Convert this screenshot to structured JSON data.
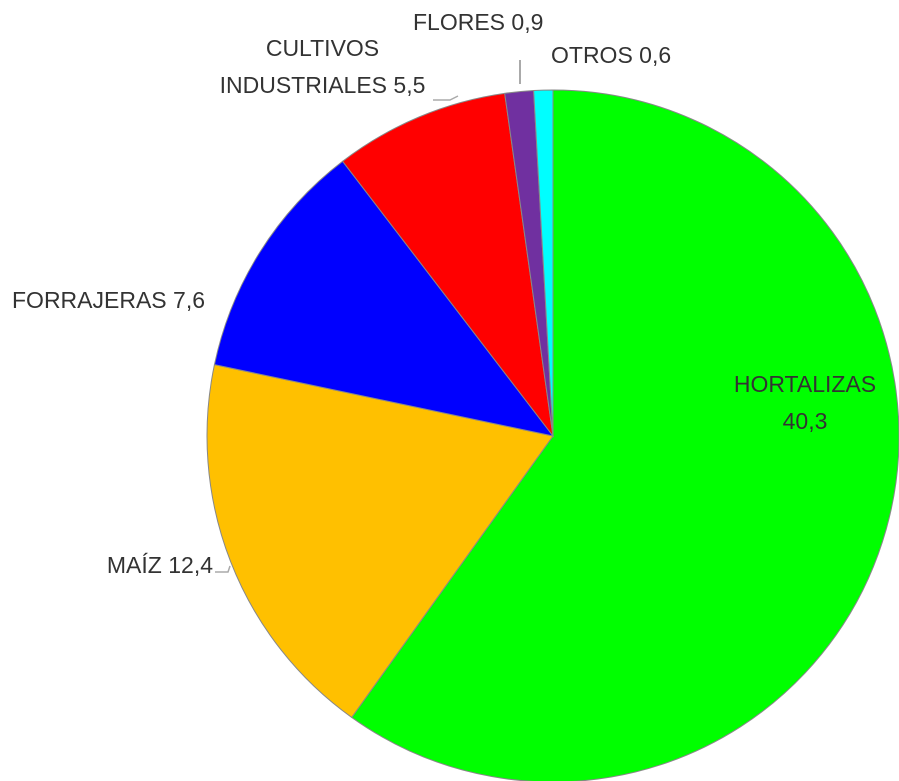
{
  "chart_data": {
    "type": "pie",
    "categories": [
      "HORTALIZAS",
      "MAÍZ",
      "FORRAJERAS",
      "CULTIVOS INDUSTRIALES",
      "FLORES",
      "OTROS"
    ],
    "values": [
      40.3,
      12.4,
      7.6,
      5.5,
      0.9,
      0.6
    ],
    "value_labels": [
      "40,3",
      "12,4",
      "7,6",
      "5,5",
      "0,9",
      "0,6"
    ],
    "colors": [
      "#00ff00",
      "#ffc000",
      "#0000ff",
      "#ff0000",
      "#7030a0",
      "#00ffff"
    ]
  }
}
